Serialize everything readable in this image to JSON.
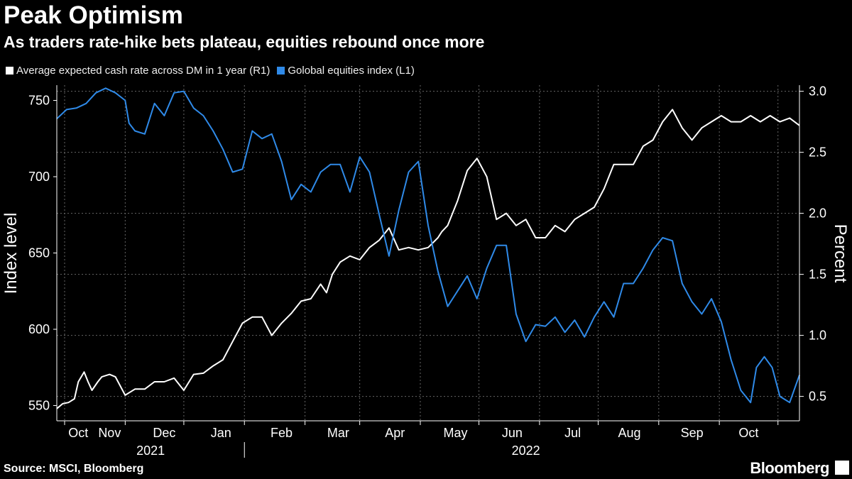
{
  "header": {
    "title": "Peak Optimism",
    "subtitle": "As traders rate-hike bets plateau, equities rebound once more"
  },
  "footer": {
    "source": "Source: MSCI, Bloomberg",
    "brand": "Bloomberg"
  },
  "colors": {
    "background": "#000000",
    "cash_rate": "#ffffff",
    "equities": "#2f8ae8",
    "grid": "#666666"
  },
  "chart_data": {
    "type": "line",
    "title": "Peak Optimism",
    "subtitle": "As traders rate-hike bets plateau, equities rebound once more",
    "x_axis": {
      "months": [
        "Oct",
        "Nov",
        "Dec",
        "Jan",
        "Feb",
        "Mar",
        "Apr",
        "May",
        "Jun",
        "Jul",
        "Aug",
        "Sep",
        "Oct"
      ],
      "years": [
        "2021",
        "2022"
      ],
      "range": [
        "2021-09-27",
        "2022-10-10"
      ]
    },
    "left_axis": {
      "label": "Index level",
      "range": [
        540,
        760
      ],
      "ticks": [
        550,
        600,
        650,
        700,
        750
      ],
      "tick_labels": [
        "550",
        "600",
        "650",
        "700",
        "750"
      ]
    },
    "right_axis": {
      "label": "Percent",
      "range": [
        0.3,
        3.05
      ],
      "ticks": [
        0.5,
        1.0,
        1.5,
        2.0,
        2.5,
        3.0
      ],
      "tick_labels": [
        "0.5",
        "1.0",
        "1.5",
        "2.0",
        "2.5",
        "3.0"
      ]
    },
    "grid": true,
    "series": [
      {
        "name": "Average expected cash rate across DM in 1 year (R1)",
        "axis": "right",
        "color": "#ffffff",
        "x": [
          0,
          3,
          6,
          9,
          11,
          14,
          16,
          18,
          21,
          23,
          27,
          30,
          35,
          40,
          45,
          50,
          55,
          60,
          65,
          70,
          75,
          80,
          85,
          90,
          95,
          100,
          105,
          110,
          115,
          120,
          125,
          130,
          135,
          138,
          141,
          145,
          150,
          155,
          160,
          165,
          170,
          175,
          180,
          185,
          190,
          195,
          197,
          200,
          205,
          210,
          215,
          220,
          225,
          230,
          235,
          240,
          245,
          250,
          255,
          260,
          265,
          270,
          275,
          280,
          285,
          290,
          295,
          300,
          305,
          310,
          315,
          320,
          325,
          330,
          335,
          340,
          345,
          350,
          355,
          360,
          365,
          370,
          375,
          380
        ],
        "y": [
          0.4,
          0.44,
          0.45,
          0.48,
          0.62,
          0.7,
          0.62,
          0.55,
          0.62,
          0.66,
          0.68,
          0.66,
          0.51,
          0.56,
          0.56,
          0.62,
          0.62,
          0.65,
          0.55,
          0.68,
          0.69,
          0.75,
          0.8,
          0.95,
          1.1,
          1.15,
          1.15,
          1.0,
          1.1,
          1.18,
          1.28,
          1.3,
          1.42,
          1.35,
          1.5,
          1.6,
          1.65,
          1.62,
          1.72,
          1.78,
          1.88,
          1.7,
          1.72,
          1.7,
          1.72,
          1.8,
          1.85,
          1.9,
          2.1,
          2.35,
          2.45,
          2.3,
          1.95,
          2.0,
          1.9,
          1.95,
          1.8,
          1.8,
          1.9,
          1.85,
          1.95,
          2.0,
          2.05,
          2.2,
          2.4,
          2.4,
          2.4,
          2.55,
          2.6,
          2.75,
          2.85,
          2.7,
          2.6,
          2.7,
          2.75,
          2.8,
          2.75,
          2.75,
          2.8,
          2.75,
          2.8,
          2.75,
          2.78,
          2.72
        ]
      },
      {
        "name": "Golobal equities index (L1)",
        "axis": "left",
        "color": "#2f8ae8",
        "x": [
          0,
          5,
          10,
          15,
          20,
          25,
          30,
          35,
          37,
          40,
          45,
          50,
          55,
          60,
          65,
          70,
          75,
          80,
          85,
          90,
          95,
          100,
          105,
          110,
          115,
          120,
          125,
          130,
          135,
          140,
          145,
          150,
          155,
          160,
          165,
          170,
          175,
          180,
          185,
          190,
          195,
          200,
          205,
          210,
          215,
          220,
          225,
          230,
          235,
          240,
          245,
          250,
          255,
          260,
          265,
          270,
          275,
          280,
          285,
          290,
          295,
          300,
          305,
          310,
          315,
          320,
          325,
          330,
          335,
          340,
          345,
          350,
          355,
          358,
          362,
          366,
          370,
          375,
          380
        ],
        "y": [
          738,
          744,
          745,
          748,
          755,
          758,
          755,
          750,
          735,
          730,
          728,
          748,
          740,
          755,
          756,
          745,
          740,
          730,
          718,
          703,
          705,
          730,
          725,
          728,
          710,
          685,
          695,
          690,
          703,
          708,
          708,
          690,
          713,
          703,
          675,
          648,
          678,
          703,
          710,
          668,
          638,
          615,
          625,
          635,
          620,
          640,
          655,
          655,
          610,
          592,
          603,
          602,
          608,
          598,
          606,
          595,
          608,
          618,
          608,
          630,
          630,
          640,
          652,
          660,
          658,
          630,
          618,
          610,
          620,
          605,
          580,
          560,
          552,
          575,
          582,
          575,
          556,
          552,
          570
        ]
      }
    ]
  }
}
